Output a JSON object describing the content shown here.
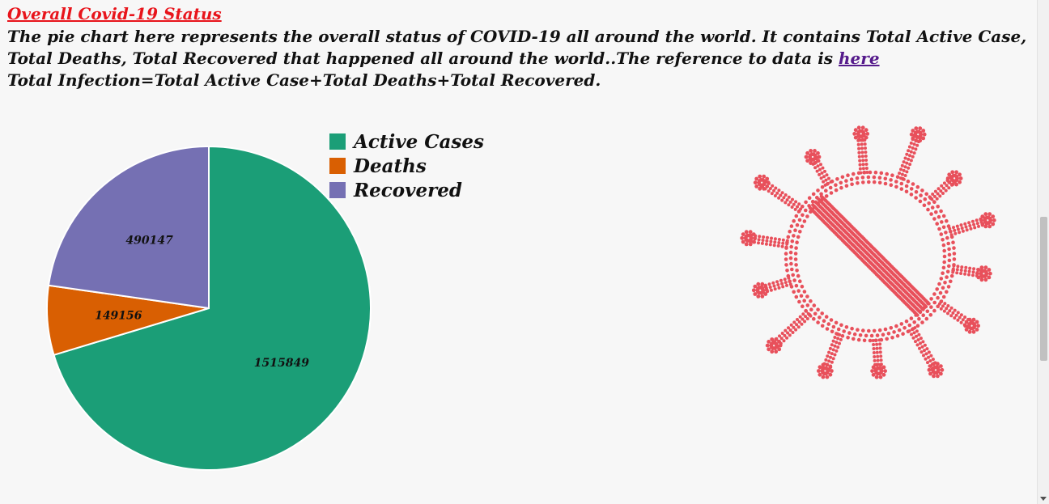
{
  "page": {
    "heading": "Overall Covid-19 Status",
    "intro_main": "The pie chart here represents the overall status of COVID-19 all around the world. It contains Total Active Case, Total  Deaths, Total Recovered that happened all around the world..The reference to data is ",
    "link_text": "here",
    "formula": "Total Infection=Total Active Case+Total  Deaths+Total Recovered."
  },
  "chart_data": {
    "type": "pie",
    "categories": [
      "Active Cases",
      "Deaths",
      "Recovered"
    ],
    "values": [
      1515849,
      149156,
      490147
    ],
    "colors": [
      "#1b9e77",
      "#d95f02",
      "#7570b3"
    ],
    "legend_position": "top-right"
  },
  "illustration": {
    "icon": "virus-icon",
    "color": "#e8505b"
  }
}
